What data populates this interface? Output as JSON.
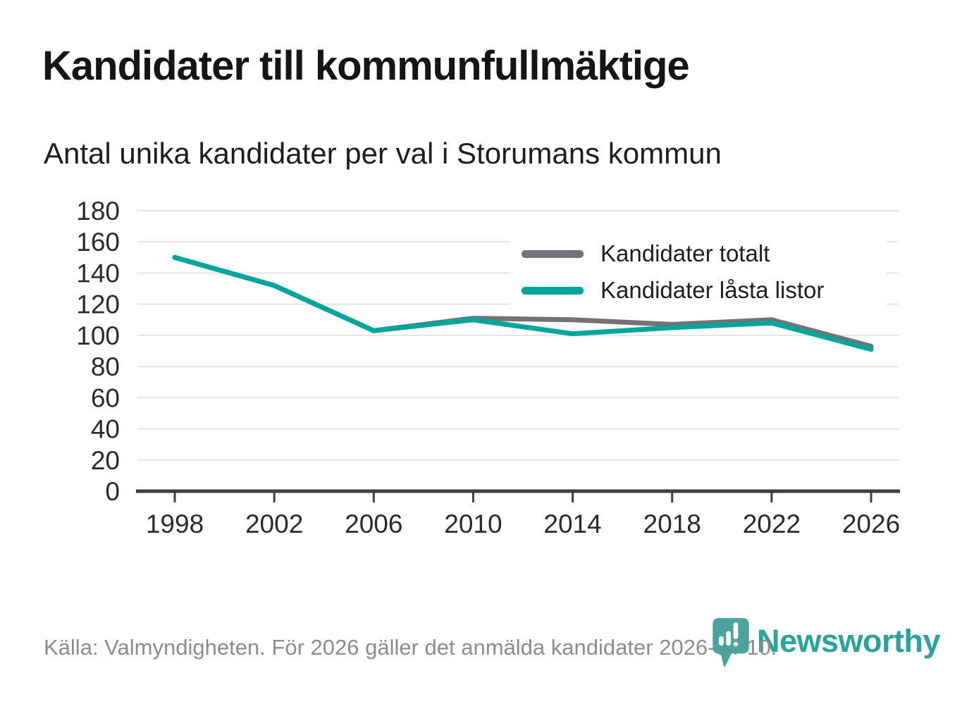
{
  "header": {
    "title": "Kandidater till kommunfullmäktige",
    "subtitle": "Antal unika kandidater per val i Storumans kommun"
  },
  "chart_data": {
    "type": "line",
    "title": "Kandidater till kommunfullmäktige",
    "subtitle": "Antal unika kandidater per val i Storumans kommun",
    "x": [
      1998,
      2002,
      2006,
      2010,
      2014,
      2018,
      2022,
      2026
    ],
    "xticklabels": [
      "1998",
      "2002",
      "2006",
      "2010",
      "2014",
      "2018",
      "2022",
      "2026"
    ],
    "series": [
      {
        "name": "Kandidater totalt",
        "color": "#737277",
        "values": [
          150,
          132,
          103,
          111,
          110,
          107,
          110,
          93
        ]
      },
      {
        "name": "Kandidater låsta listor",
        "color": "#00a69b",
        "values": [
          150,
          132,
          103,
          110,
          101,
          105,
          108,
          91
        ]
      }
    ],
    "ylim": [
      0,
      180
    ],
    "yticks": [
      0,
      20,
      40,
      60,
      80,
      100,
      120,
      140,
      160,
      180
    ],
    "xlabel": "",
    "ylabel": "",
    "grid": true,
    "legend_position": "inside-top-right"
  },
  "legend": {
    "items": [
      {
        "label": "Kandidater totalt",
        "color": "#737277"
      },
      {
        "label": "Kandidater låsta listor",
        "color": "#00a69b"
      }
    ]
  },
  "footer": {
    "source": "Källa: Valmyndigheten. För 2026 gäller det anmälda kandidater 2026-04-10.",
    "brand": "Newsworthy"
  },
  "colors": {
    "accent_teal": "#00a69b",
    "series_gray": "#737277",
    "grid": "#e4e4e4",
    "axis": "#3f3f3f",
    "logo_pin": "#4ba39c",
    "logo_wordmark": "#2aa39a",
    "source_text": "#8c8c8c"
  }
}
